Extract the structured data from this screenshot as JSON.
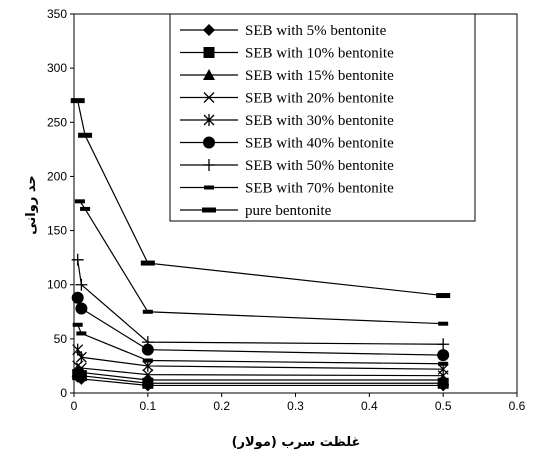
{
  "chart_data": {
    "type": "line",
    "xlabel": "غلظت سرب (مولار)",
    "ylabel": "حد روانی",
    "xlim": [
      0,
      0.6
    ],
    "ylim": [
      0,
      350
    ],
    "xticks": [
      "0",
      "0.1",
      "0.2",
      "0.3",
      "0.4",
      "0.5",
      "0.6"
    ],
    "yticks": [
      "0",
      "50",
      "100",
      "150",
      "200",
      "250",
      "300",
      "350"
    ],
    "grid": false,
    "legend_position": "top-right",
    "series": [
      {
        "name": "SEB with 5% bentonite",
        "marker": "diamond",
        "points": [
          [
            0.005,
            15
          ],
          [
            0.01,
            13
          ],
          [
            0.1,
            7
          ],
          [
            0.5,
            7
          ]
        ]
      },
      {
        "name": "SEB with 10% bentonite",
        "marker": "square",
        "points": [
          [
            0.005,
            17
          ],
          [
            0.01,
            16
          ],
          [
            0.1,
            9
          ],
          [
            0.5,
            9
          ]
        ]
      },
      {
        "name": "SEB with 15% bentonite",
        "marker": "triangle",
        "points": [
          [
            0.005,
            20
          ],
          [
            0.01,
            19
          ],
          [
            0.1,
            12
          ],
          [
            0.5,
            12
          ]
        ]
      },
      {
        "name": "SEB with 20% bentonite",
        "marker": "x",
        "points": [
          [
            0.005,
            25
          ],
          [
            0.01,
            23
          ],
          [
            0.1,
            17
          ],
          [
            0.5,
            16
          ]
        ]
      },
      {
        "name": "SEB with 30% bentonite",
        "marker": "star",
        "points": [
          [
            0.005,
            40
          ],
          [
            0.01,
            33
          ],
          [
            0.1,
            25
          ],
          [
            0.5,
            22
          ]
        ]
      },
      {
        "name": "SEB with 40% bentonite",
        "marker": "circle",
        "points": [
          [
            0.005,
            88
          ],
          [
            0.01,
            78
          ],
          [
            0.1,
            40
          ],
          [
            0.5,
            35
          ]
        ]
      },
      {
        "name": "SEB with 50% bentonite",
        "marker": "plus",
        "points": [
          [
            0.005,
            123
          ],
          [
            0.01,
            100
          ],
          [
            0.1,
            47
          ],
          [
            0.5,
            45
          ]
        ]
      },
      {
        "name": "SEB with 70% bentonite",
        "marker": "dash",
        "points": [
          [
            0.005,
            63
          ],
          [
            0.01,
            55
          ],
          [
            0.1,
            30
          ],
          [
            0.5,
            27
          ]
        ]
      },
      {
        "name": "pure bentonite",
        "marker": "bar",
        "points": [
          [
            0.005,
            270
          ],
          [
            0.015,
            238
          ],
          [
            0.1,
            120
          ],
          [
            0.5,
            90
          ]
        ]
      }
    ],
    "extra_series": [
      {
        "marker": "dash",
        "points": [
          [
            0.008,
            177
          ],
          [
            0.015,
            170
          ],
          [
            0.1,
            75
          ],
          [
            0.5,
            64
          ]
        ]
      }
    ]
  }
}
